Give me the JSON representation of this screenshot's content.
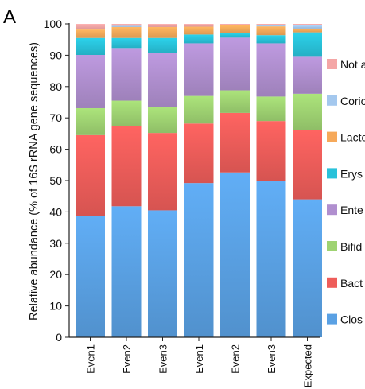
{
  "panel_label": "A",
  "colors": {
    "Not a": "#f4a6a6",
    "Corio": "#a4c8ee",
    "Lacto": "#f6a95a",
    "Erys": "#29c2da",
    "Ente": "#b08fcf",
    "Bifid": "#9fd372",
    "Bact": "#ee5d5a",
    "Clos": "#5aa1e4"
  },
  "chart_data": {
    "type": "bar",
    "stacked": true,
    "categories": [
      "Even1",
      "Even2",
      "Even3",
      "Even1",
      "Even2",
      "Even3",
      "Expected"
    ],
    "ylabel": "Relative abundance (% of 16S rRNA gene sequences)",
    "xlabel": "",
    "ylim": [
      0,
      100
    ],
    "yticks": [
      0,
      10,
      20,
      30,
      40,
      50,
      60,
      70,
      80,
      90,
      100
    ],
    "grid": false,
    "legend_position": "right",
    "series": [
      {
        "name": "Clos",
        "values": [
          38.8,
          41.8,
          40.5,
          49.2,
          52.6,
          50.0,
          44.0
        ]
      },
      {
        "name": "Bact",
        "values": [
          25.7,
          25.6,
          24.7,
          19.0,
          19.0,
          19.0,
          22.2
        ]
      },
      {
        "name": "Bifid",
        "values": [
          8.6,
          8.1,
          8.3,
          8.8,
          7.2,
          7.8,
          11.5
        ]
      },
      {
        "name": "Ente",
        "values": [
          17.0,
          16.8,
          17.2,
          16.8,
          16.8,
          17.0,
          11.8
        ]
      },
      {
        "name": "Erys",
        "values": [
          5.4,
          3.2,
          4.8,
          2.8,
          1.4,
          2.6,
          7.8
        ]
      },
      {
        "name": "Lacto",
        "values": [
          2.7,
          3.5,
          3.5,
          2.5,
          2.5,
          2.8,
          1.2
        ]
      },
      {
        "name": "Corio",
        "values": [
          0.0,
          0.4,
          0.0,
          0.0,
          0.0,
          0.3,
          1.0
        ]
      },
      {
        "name": "Not a",
        "values": [
          1.8,
          0.6,
          1.0,
          0.9,
          0.5,
          0.5,
          0.5
        ]
      }
    ],
    "legend_order": [
      "Not a",
      "Corio",
      "Lacto",
      "Erys",
      "Ente",
      "Bifid",
      "Bact",
      "Clos"
    ]
  }
}
